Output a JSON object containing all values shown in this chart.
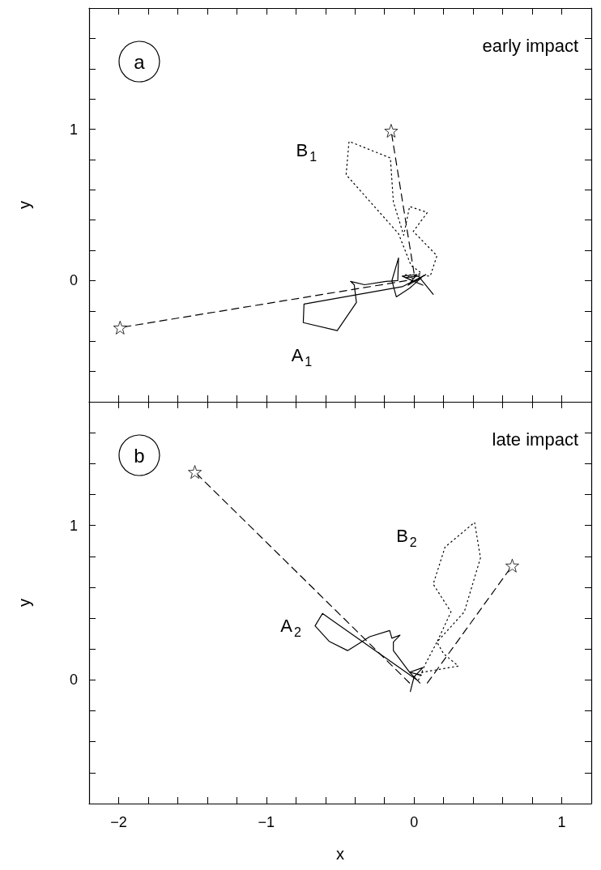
{
  "chart_data": [
    {
      "type": "line",
      "annotations": [
        "a",
        "early impact",
        "A$_{1}$",
        "B$_{1}$"
      ],
      "ylabel": "y",
      "xlim": [
        -2.2,
        1.2
      ],
      "ylim": [
        -0.8,
        1.8
      ],
      "tick_labels": "y",
      "xticks": [
        {
          "value": -2,
          "label": null
        },
        {
          "value": -1.8,
          "label": null
        },
        {
          "value": -1.6,
          "label": null
        },
        {
          "value": -1.4,
          "label": null
        },
        {
          "value": -1.2,
          "label": null
        },
        {
          "value": -1,
          "label": null
        },
        {
          "value": -0.8,
          "label": null
        },
        {
          "value": -0.6,
          "label": null
        },
        {
          "value": -0.4,
          "label": null
        },
        {
          "value": -0.2,
          "label": null
        },
        {
          "value": 0,
          "label": null
        },
        {
          "value": 0.2,
          "label": null
        },
        {
          "value": 0.4,
          "label": null
        },
        {
          "value": 0.6,
          "label": null
        },
        {
          "value": 0.8,
          "label": null
        },
        {
          "value": 1,
          "label": null
        }
      ],
      "yticks": [
        {
          "value": -0.6,
          "label": null
        },
        {
          "value": -0.4,
          "label": null
        },
        {
          "value": -0.2,
          "label": null
        },
        {
          "value": 0,
          "label": "0"
        },
        {
          "value": 0.2,
          "label": null
        },
        {
          "value": 0.4,
          "label": null
        },
        {
          "value": 0.6,
          "label": null
        },
        {
          "value": 0.8,
          "label": null
        },
        {
          "value": 1,
          "label": "1"
        },
        {
          "value": 1.2,
          "label": null
        },
        {
          "value": 1.4,
          "label": null
        },
        {
          "value": 1.6,
          "label": null
        }
      ],
      "series": [
        {
          "color": "#000000",
          "line_style": "dashed",
          "marker": "none",
          "x": [
            -0.05,
            -1.99
          ],
          "values": [
            0.0,
            -0.31
          ]
        },
        {
          "color": "#000000",
          "line_style": "dashed",
          "marker": "none",
          "x": [
            0.0,
            -0.155
          ],
          "values": [
            0.05,
            0.99
          ]
        },
        {
          "color": "#000000",
          "line_style": "solid",
          "marker": "none",
          "x": [
            0.13,
            0.03,
            -0.06,
            0.06,
            -0.08,
            0.02,
            -0.04,
            0.08,
            -0.08,
            -0.745,
            -0.75,
            -0.52,
            -0.39,
            -0.405,
            -0.43,
            -0.335,
            -0.19,
            -0.11,
            -0.105,
            -0.15,
            -0.12,
            -0.03,
            0.05
          ],
          "values": [
            -0.09,
            0.03,
            0.02,
            -0.03,
            0.03,
            0.04,
            -0.03,
            0.04,
            -0.04,
            -0.155,
            -0.277,
            -0.33,
            -0.144,
            -0.027,
            -0.005,
            -0.027,
            -0.005,
            0.0,
            0.15,
            0.0,
            -0.107,
            -0.05,
            0.02
          ]
        },
        {
          "color": "#000000",
          "line_style": "dotted",
          "marker": "none",
          "x": [
            0.02,
            -0.06,
            0.11,
            0.155,
            -0.005,
            0.09,
            -0.03,
            -0.07,
            -0.14,
            -0.16,
            -0.44,
            -0.46,
            -0.105,
            -0.02,
            0.05,
            -0.03
          ],
          "values": [
            0.0,
            0.04,
            0.03,
            0.165,
            0.325,
            0.45,
            0.49,
            0.3,
            0.52,
            0.81,
            0.92,
            0.7,
            0.31,
            0.1,
            0.05,
            0.02
          ]
        },
        {
          "type": "scatter",
          "color": "#000000",
          "marker": "star",
          "x": [
            -1.99,
            -0.155
          ],
          "values": [
            -0.31,
            0.99
          ]
        }
      ]
    },
    {
      "type": "line",
      "annotations": [
        "b",
        "late impact",
        "A$_{2}$",
        "B$_{2}$"
      ],
      "xlabel": "x",
      "ylabel": "y",
      "xlim": [
        -2.2,
        1.2
      ],
      "ylim": [
        -0.8,
        1.8
      ],
      "xticks": [
        {
          "value": -2,
          "label": "−2"
        },
        {
          "value": -1.8,
          "label": null
        },
        {
          "value": -1.6,
          "label": null
        },
        {
          "value": -1.4,
          "label": null
        },
        {
          "value": -1.2,
          "label": null
        },
        {
          "value": -1,
          "label": "−1"
        },
        {
          "value": -0.8,
          "label": null
        },
        {
          "value": -0.6,
          "label": null
        },
        {
          "value": -0.4,
          "label": null
        },
        {
          "value": -0.2,
          "label": null
        },
        0,
        {
          "value": 0.2,
          "label": null
        },
        {
          "value": 0.4,
          "label": null
        },
        {
          "value": 0.6,
          "label": null
        },
        {
          "value": 0.8,
          "label": null
        },
        1
      ],
      "yticks": [
        {
          "value": -0.6,
          "label": null
        },
        {
          "value": -0.4,
          "label": null
        },
        {
          "value": -0.2,
          "label": null
        },
        0,
        {
          "value": 0.2,
          "label": null
        },
        {
          "value": 0.4,
          "label": null
        },
        {
          "value": 0.6,
          "label": null
        },
        {
          "value": 0.8,
          "label": null
        },
        1,
        {
          "value": 1.2,
          "label": null
        },
        {
          "value": 1.4,
          "label": null
        },
        {
          "value": 1.6,
          "label": null
        }
      ],
      "series": [
        {
          "color": "#000000",
          "line_style": "dashed",
          "marker": "none",
          "x": [
            -0.03,
            -1.484
          ],
          "values": [
            -0.02,
            1.346
          ]
        },
        {
          "color": "#000000",
          "line_style": "dashed",
          "marker": "none",
          "x": [
            0.09,
            0.665
          ],
          "values": [
            -0.02,
            0.74
          ]
        },
        {
          "color": "#000000",
          "line_style": "solid",
          "marker": "none",
          "x": [
            -0.025,
            0.0,
            0.06,
            -0.03,
            0.04,
            0.02,
            -0.62,
            -0.67,
            -0.575,
            -0.45,
            -0.3,
            -0.165,
            -0.15,
            -0.095,
            -0.14,
            -0.14,
            -0.03,
            0.05
          ],
          "values": [
            -0.075,
            0.02,
            0.08,
            0.05,
            -0.02,
            0.0,
            0.43,
            0.35,
            0.25,
            0.19,
            0.28,
            0.32,
            0.27,
            0.29,
            0.245,
            0.19,
            0.05,
            0.03
          ]
        },
        {
          "color": "#000000",
          "line_style": "dotted",
          "marker": "none",
          "x": [
            0.03,
            0.075,
            0.155,
            0.34,
            0.45,
            0.41,
            0.21,
            0.13,
            0.25,
            0.155,
            0.2,
            0.3,
            0.06,
            0.0
          ],
          "values": [
            0.0,
            0.1,
            0.245,
            0.44,
            0.79,
            1.02,
            0.86,
            0.62,
            0.44,
            0.245,
            0.17,
            0.09,
            0.05,
            0.02
          ]
        },
        {
          "type": "scatter",
          "color": "#000000",
          "marker": "star",
          "x": [
            -1.484,
            0.665
          ],
          "values": [
            1.346,
            0.74
          ]
        }
      ]
    }
  ]
}
